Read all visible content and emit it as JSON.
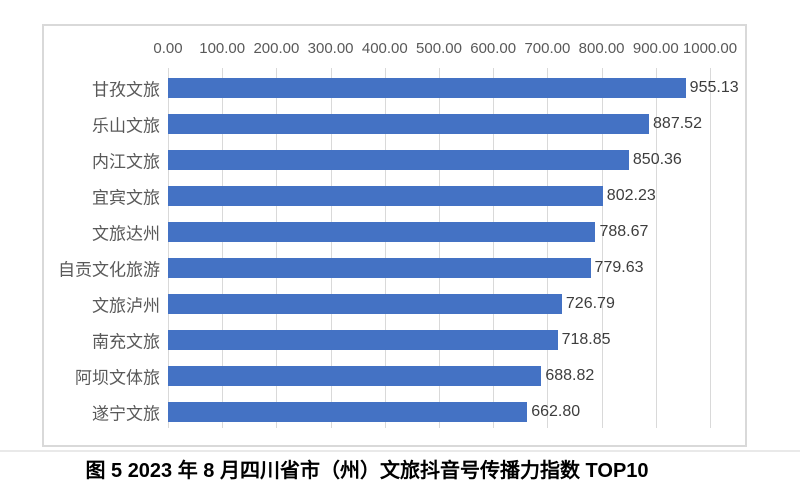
{
  "page": {
    "background_color": "#ffffff"
  },
  "chart_data": {
    "type": "bar",
    "orientation": "horizontal",
    "title": "图 5  2023 年 8 月四川省市（州）文旅抖音号传播力指数 TOP10",
    "categories": [
      "甘孜文旅",
      "乐山文旅",
      "内江文旅",
      "宜宾文旅",
      "文旅达州",
      "自贡文化旅游",
      "文旅泸州",
      "南充文旅",
      "阿坝文体旅",
      "遂宁文旅"
    ],
    "values": [
      955.13,
      887.52,
      850.36,
      802.23,
      788.67,
      779.63,
      726.79,
      718.85,
      688.82,
      662.8
    ],
    "value_labels": [
      "955.13",
      "887.52",
      "850.36",
      "802.23",
      "788.67",
      "779.63",
      "726.79",
      "718.85",
      "688.82",
      "662.80"
    ],
    "axis_ticks": [
      "0.00",
      "100.00",
      "200.00",
      "300.00",
      "400.00",
      "500.00",
      "600.00",
      "700.00",
      "800.00",
      "900.00",
      "1000.00"
    ],
    "xlabel": "",
    "ylabel": "",
    "xlim": [
      0,
      1000
    ],
    "grid": true,
    "legend": false,
    "bar_color": "#4472C4",
    "gridline_color": "#D9D9D9",
    "frame_color": "#D9D9D9",
    "axis_text_color": "#595959",
    "category_text_color": "#595959",
    "value_text_color": "#3D3D3D"
  },
  "caption": {
    "text": "图 5  2023 年 8 月四川省市（州）文旅抖音号传播力指数 TOP10"
  }
}
